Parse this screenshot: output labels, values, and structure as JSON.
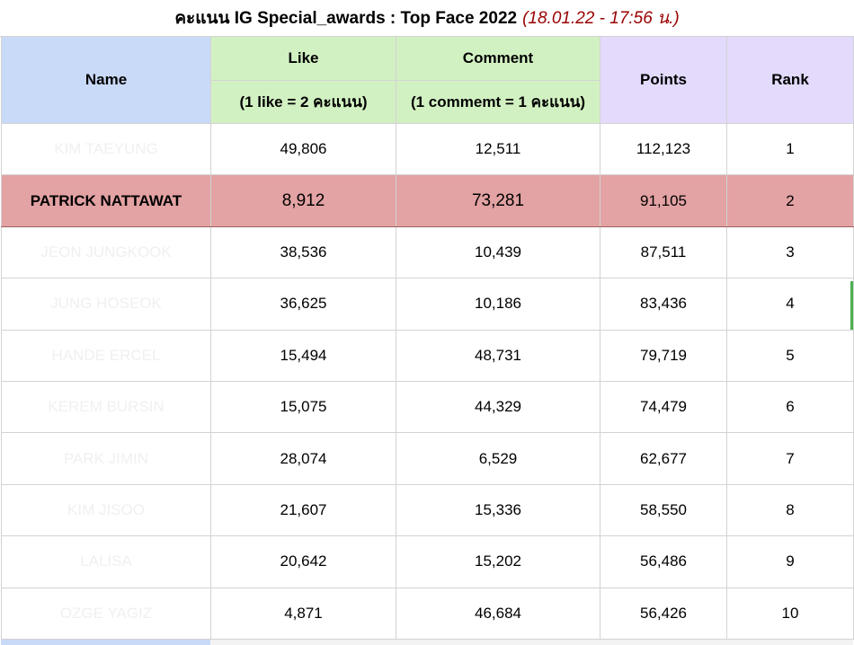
{
  "title": {
    "main": "คะแนน IG Special_awards : Top Face 2022",
    "timestamp": "(18.01.22 - 17:56 น.)"
  },
  "headers": {
    "name": "Name",
    "like": "Like",
    "like_sub": "(1 like = 2 คะแนน)",
    "comment": "Comment",
    "comment_sub": "(1 commemt = 1 คะแนน)",
    "points": "Points",
    "rank": "Rank"
  },
  "rows": [
    {
      "name": "KIM TAEYUNG",
      "like": "49,806",
      "comment": "12,511",
      "points": "112,123",
      "rank": "1"
    },
    {
      "name": "PATRICK NATTAWAT",
      "like": "8,912",
      "comment": "73,281",
      "points": "91,105",
      "rank": "2"
    },
    {
      "name": "JEON JUNGKOOK",
      "like": "38,536",
      "comment": "10,439",
      "points": "87,511",
      "rank": "3"
    },
    {
      "name": "JUNG HOSEOK",
      "like": "36,625",
      "comment": "10,186",
      "points": "83,436",
      "rank": "4"
    },
    {
      "name": "HANDE ERCEL",
      "like": "15,494",
      "comment": "48,731",
      "points": "79,719",
      "rank": "5"
    },
    {
      "name": "KEREM BURSIN",
      "like": "15,075",
      "comment": "44,329",
      "points": "74,479",
      "rank": "6"
    },
    {
      "name": "PARK JIMIN",
      "like": "28,074",
      "comment": "6,529",
      "points": "62,677",
      "rank": "7"
    },
    {
      "name": "KIM JISOO",
      "like": "21,607",
      "comment": "15,336",
      "points": "58,550",
      "rank": "8"
    },
    {
      "name": "LALISA",
      "like": "20,642",
      "comment": "15,202",
      "points": "56,486",
      "rank": "9"
    },
    {
      "name": "OZGE YAGIZ",
      "like": "4,871",
      "comment": "46,684",
      "points": "56,426",
      "rank": "10"
    }
  ],
  "colors": {
    "name_header": "#c9daf8",
    "like_comment_header": "#d2f1c2",
    "points_rank_header": "#e3dafc",
    "highlight_row": "#e3a2a3",
    "timestamp": "#990000"
  }
}
